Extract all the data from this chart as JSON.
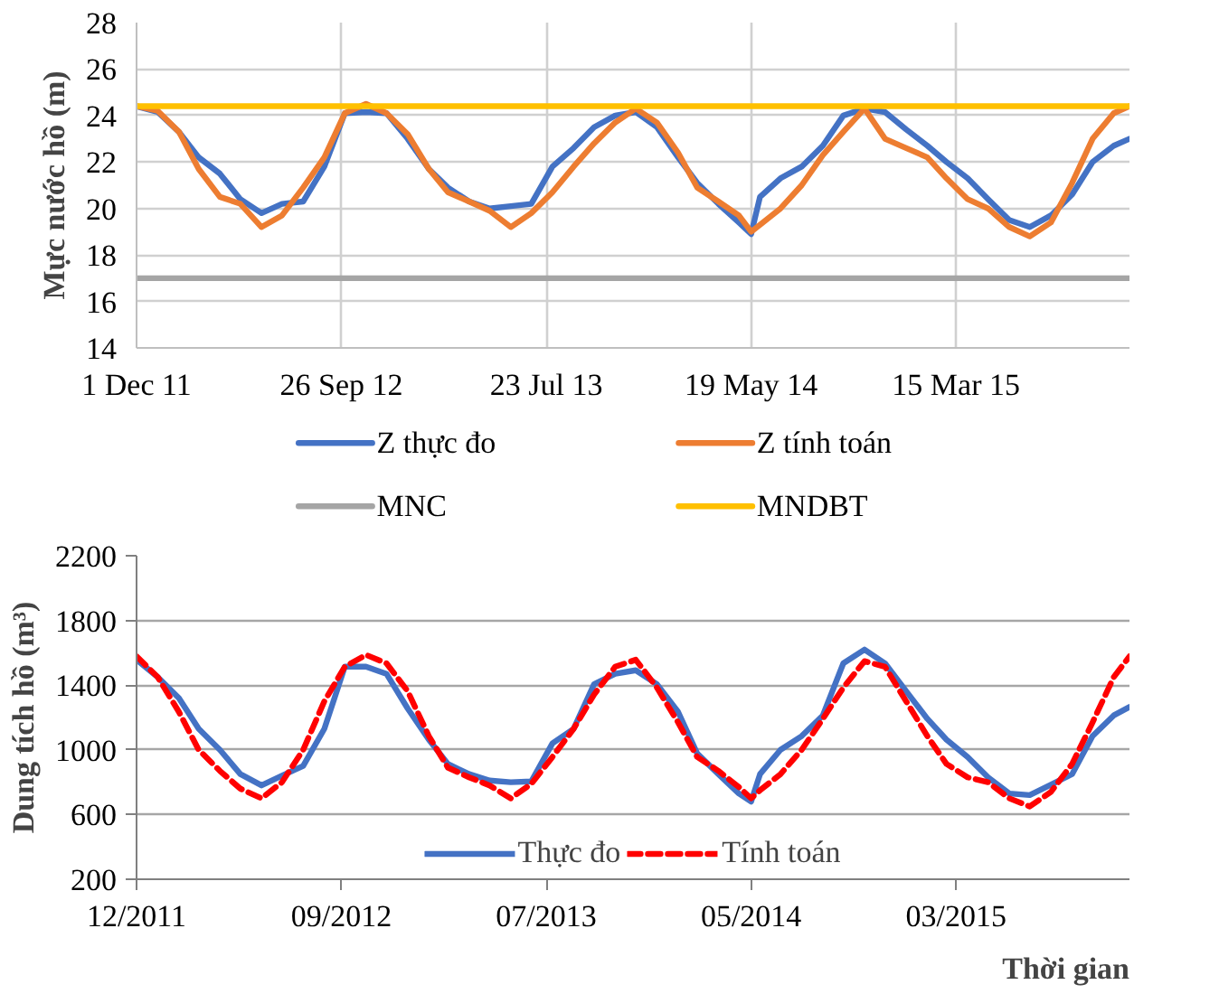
{
  "chart_data": [
    {
      "type": "line",
      "ylabel": "Mực nước hồ (m)",
      "x": [
        "2011-12-01",
        "2012-01-01",
        "2012-02-01",
        "2012-03-01",
        "2012-04-01",
        "2012-05-01",
        "2012-06-01",
        "2012-07-01",
        "2012-08-01",
        "2012-09-01",
        "2012-10-01",
        "2012-11-01",
        "2012-12-01",
        "2013-01-01",
        "2013-02-01",
        "2013-03-01",
        "2013-04-01",
        "2013-05-01",
        "2013-06-01",
        "2013-07-01",
        "2013-08-01",
        "2013-09-01",
        "2013-10-01",
        "2013-11-01",
        "2013-12-01",
        "2014-01-01",
        "2014-02-01",
        "2014-03-01",
        "2014-04-01",
        "2014-05-01",
        "2014-05-19",
        "2014-06-01",
        "2014-07-01",
        "2014-08-01",
        "2014-09-01",
        "2014-10-01",
        "2014-11-01",
        "2014-12-01",
        "2015-01-01",
        "2015-02-01",
        "2015-03-01",
        "2015-04-01",
        "2015-05-01",
        "2015-06-01",
        "2015-07-01",
        "2015-08-01",
        "2015-09-01",
        "2015-10-01",
        "2015-11-01",
        "2015-11-24"
      ],
      "series": [
        {
          "name": "Z thực đo",
          "color": "#4472c4",
          "values": [
            24.4,
            24.15,
            23.3,
            22.2,
            21.5,
            20.4,
            19.8,
            20.2,
            20.3,
            21.8,
            24.1,
            24.15,
            24.1,
            23.0,
            21.7,
            20.9,
            20.3,
            20.0,
            20.1,
            20.2,
            21.8,
            22.6,
            23.5,
            24.0,
            24.15,
            23.5,
            22.2,
            21.1,
            20.2,
            19.4,
            18.9,
            20.5,
            21.3,
            21.8,
            22.7,
            24.0,
            24.3,
            24.15,
            23.4,
            22.7,
            22.0,
            21.3,
            20.4,
            19.5,
            19.2,
            19.7,
            20.6,
            22.0,
            22.7,
            23.0
          ]
        },
        {
          "name": "Z tính toán",
          "color": "#ed7d31",
          "values": [
            24.4,
            24.2,
            23.3,
            21.7,
            20.5,
            20.2,
            19.2,
            19.7,
            20.9,
            22.2,
            24.1,
            24.5,
            24.1,
            23.2,
            21.7,
            20.7,
            20.3,
            19.9,
            19.2,
            19.8,
            20.7,
            21.8,
            22.8,
            23.7,
            24.3,
            23.7,
            22.4,
            20.9,
            20.3,
            19.7,
            19.0,
            19.3,
            20.0,
            21.0,
            22.3,
            23.3,
            24.3,
            23.0,
            22.6,
            22.2,
            21.3,
            20.4,
            20.0,
            19.2,
            18.8,
            19.4,
            21.1,
            23.0,
            24.1,
            24.4
          ]
        },
        {
          "name": "MNC",
          "color": "#a5a5a5",
          "x": [
            "2011-12-01",
            "2015-11-24"
          ],
          "values": [
            17,
            17
          ]
        },
        {
          "name": "MNDBT",
          "color": "#ffc000",
          "x": [
            "2011-12-01",
            "2015-11-24"
          ],
          "values": [
            24.4,
            24.4
          ]
        }
      ],
      "xlim": [
        "2011-12-01",
        "2015-11-24"
      ],
      "xticks": [
        {
          "value": "2011-12-01",
          "label": "1 Dec 11"
        },
        {
          "value": "2012-09-26",
          "label": "26 Sep 12"
        },
        {
          "value": "2013-07-23",
          "label": "23 Jul 13"
        },
        {
          "value": "2014-05-19",
          "label": "19 May 14"
        },
        {
          "value": "2015-03-15",
          "label": "15 Mar 15"
        }
      ],
      "ylim": [
        14,
        28
      ],
      "yticks": [
        14,
        16,
        18,
        20,
        22,
        24,
        26,
        28
      ],
      "grid": true,
      "legend": "bottom",
      "line_style": "solid"
    },
    {
      "type": "line",
      "ylabel": "Dung tích hồ (m³)",
      "xlabel": "Thời gian",
      "x": [
        "2011-12-01",
        "2012-01-01",
        "2012-02-01",
        "2012-03-01",
        "2012-04-01",
        "2012-05-01",
        "2012-06-01",
        "2012-07-01",
        "2012-08-01",
        "2012-09-01",
        "2012-10-01",
        "2012-11-01",
        "2012-12-01",
        "2013-01-01",
        "2013-02-01",
        "2013-03-01",
        "2013-04-01",
        "2013-05-01",
        "2013-06-01",
        "2013-07-01",
        "2013-08-01",
        "2013-09-01",
        "2013-10-01",
        "2013-11-01",
        "2013-12-01",
        "2014-01-01",
        "2014-02-01",
        "2014-03-01",
        "2014-04-01",
        "2014-05-01",
        "2014-05-19",
        "2014-06-01",
        "2014-07-01",
        "2014-08-01",
        "2014-09-01",
        "2014-10-01",
        "2014-11-01",
        "2014-12-01",
        "2015-01-01",
        "2015-02-01",
        "2015-03-01",
        "2015-04-01",
        "2015-05-01",
        "2015-06-01",
        "2015-07-01",
        "2015-08-01",
        "2015-09-01",
        "2015-10-01",
        "2015-11-01",
        "2015-11-24"
      ],
      "series": [
        {
          "name": "Thực đo",
          "color": "#4472c4",
          "line_style": "solid",
          "values": [
            1557,
            1450,
            1320,
            1130,
            1000,
            850,
            780,
            840,
            900,
            1130,
            1514,
            1514,
            1470,
            1256,
            1063,
            913,
            850,
            810,
            800,
            805,
            1040,
            1130,
            1406,
            1470,
            1492,
            1406,
            1235,
            977,
            850,
            730,
            680,
            850,
            1000,
            1085,
            1213,
            1535,
            1620,
            1535,
            1363,
            1192,
            1063,
            956,
            830,
            730,
            720,
            785,
            850,
            1085,
            1213,
            1265
          ]
        },
        {
          "name": "Tính toán",
          "color": "#ff0000",
          "line_style": "dashed",
          "values": [
            1578,
            1450,
            1235,
            1000,
            870,
            760,
            700,
            800,
            1000,
            1300,
            1514,
            1587,
            1535,
            1363,
            1085,
            890,
            830,
            780,
            700,
            790,
            956,
            1130,
            1342,
            1514,
            1557,
            1385,
            1170,
            956,
            870,
            770,
            700,
            750,
            850,
            1000,
            1192,
            1385,
            1548,
            1514,
            1300,
            1085,
            913,
            830,
            800,
            700,
            650,
            740,
            913,
            1170,
            1450,
            1578
          ]
        }
      ],
      "xlim": [
        "2011-12-01",
        "2015-11-24"
      ],
      "xticks": [
        {
          "value": "2011-12-01",
          "label": "12/2011"
        },
        {
          "value": "2012-09-26",
          "label": "09/2012"
        },
        {
          "value": "2013-07-23",
          "label": "07/2013"
        },
        {
          "value": "2014-05-19",
          "label": "05/2014"
        },
        {
          "value": "2015-03-15",
          "label": "03/2015"
        }
      ],
      "ylim": [
        200,
        2200
      ],
      "yticks": [
        200,
        600,
        1000,
        1400,
        1800,
        2200
      ],
      "grid": "y",
      "legend": "bottom center"
    }
  ]
}
